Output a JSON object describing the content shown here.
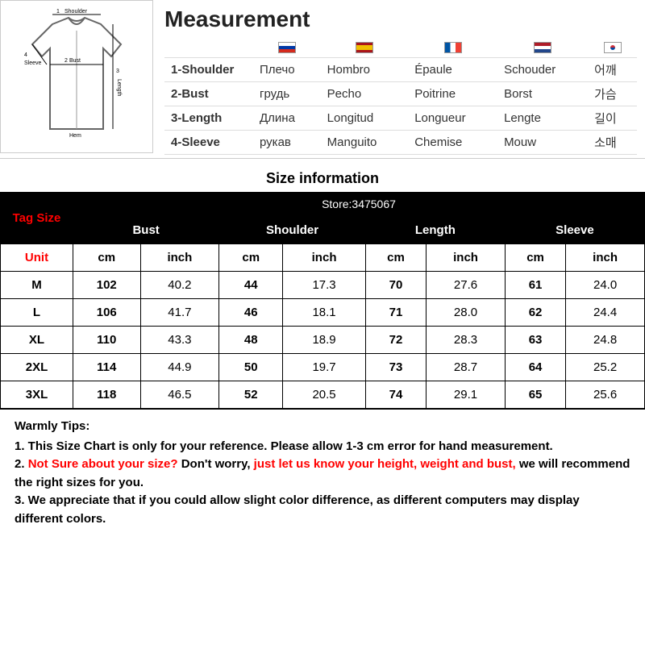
{
  "measurement": {
    "title": "Measurement",
    "rows": [
      {
        "label": "1-Shoulder",
        "ru": "Плечо",
        "es": "Hombro",
        "fr": "Épaule",
        "nl": "Schouder",
        "kr": "어깨"
      },
      {
        "label": "2-Bust",
        "ru": "грудь",
        "es": "Pecho",
        "fr": "Poitrine",
        "nl": "Borst",
        "kr": "가슴"
      },
      {
        "label": "3-Length",
        "ru": "Длина",
        "es": "Longitud",
        "fr": "Longueur",
        "nl": "Lengte",
        "kr": "길이"
      },
      {
        "label": "4-Sleeve",
        "ru": "рукав",
        "es": "Manguito",
        "fr": "Chemise",
        "nl": "Mouw",
        "kr": "소매"
      }
    ],
    "diagram_labels": {
      "shoulder": "Shoulder",
      "bust": "Bust",
      "length": "Length",
      "sleeve": "Sleeve",
      "hem": "Hem",
      "n1": "1",
      "n2": "2",
      "n3": "3",
      "n4": "4"
    }
  },
  "size_info": {
    "heading": "Size information",
    "store": "Store:3475067",
    "tag_size_label": "Tag Size",
    "unit_label": "Unit",
    "group_headers": [
      "Bust",
      "Shoulder",
      "Length",
      "Sleeve"
    ],
    "unit_headers": [
      "cm",
      "inch",
      "cm",
      "inch",
      "cm",
      "inch",
      "cm",
      "inch"
    ],
    "rows": [
      {
        "size": "M",
        "vals": [
          "102",
          "40.2",
          "44",
          "17.3",
          "70",
          "27.6",
          "61",
          "24.0"
        ]
      },
      {
        "size": "L",
        "vals": [
          "106",
          "41.7",
          "46",
          "18.1",
          "71",
          "28.0",
          "62",
          "24.4"
        ]
      },
      {
        "size": "XL",
        "vals": [
          "110",
          "43.3",
          "48",
          "18.9",
          "72",
          "28.3",
          "63",
          "24.8"
        ]
      },
      {
        "size": "2XL",
        "vals": [
          "114",
          "44.9",
          "50",
          "19.7",
          "73",
          "28.7",
          "64",
          "25.2"
        ]
      },
      {
        "size": "3XL",
        "vals": [
          "118",
          "46.5",
          "52",
          "20.5",
          "74",
          "29.1",
          "65",
          "25.6"
        ]
      }
    ]
  },
  "tips": {
    "title": "Warmly Tips:",
    "line1": "1. This Size Chart is only for your reference. Please allow 1-3 cm error for hand measurement.",
    "line2_a": "2. ",
    "line2_b": "Not Sure about your size?",
    "line2_c": " Don't worry, ",
    "line2_d": "just let us know your height, weight and bust,",
    "line2_e": " we will recommend the right sizes for you.",
    "line3": "3. We appreciate that if you could allow slight color difference, as different computers may display different colors."
  },
  "colors": {
    "black": "#000000",
    "red": "#ff0000",
    "text": "#222222",
    "border": "#cccccc"
  }
}
